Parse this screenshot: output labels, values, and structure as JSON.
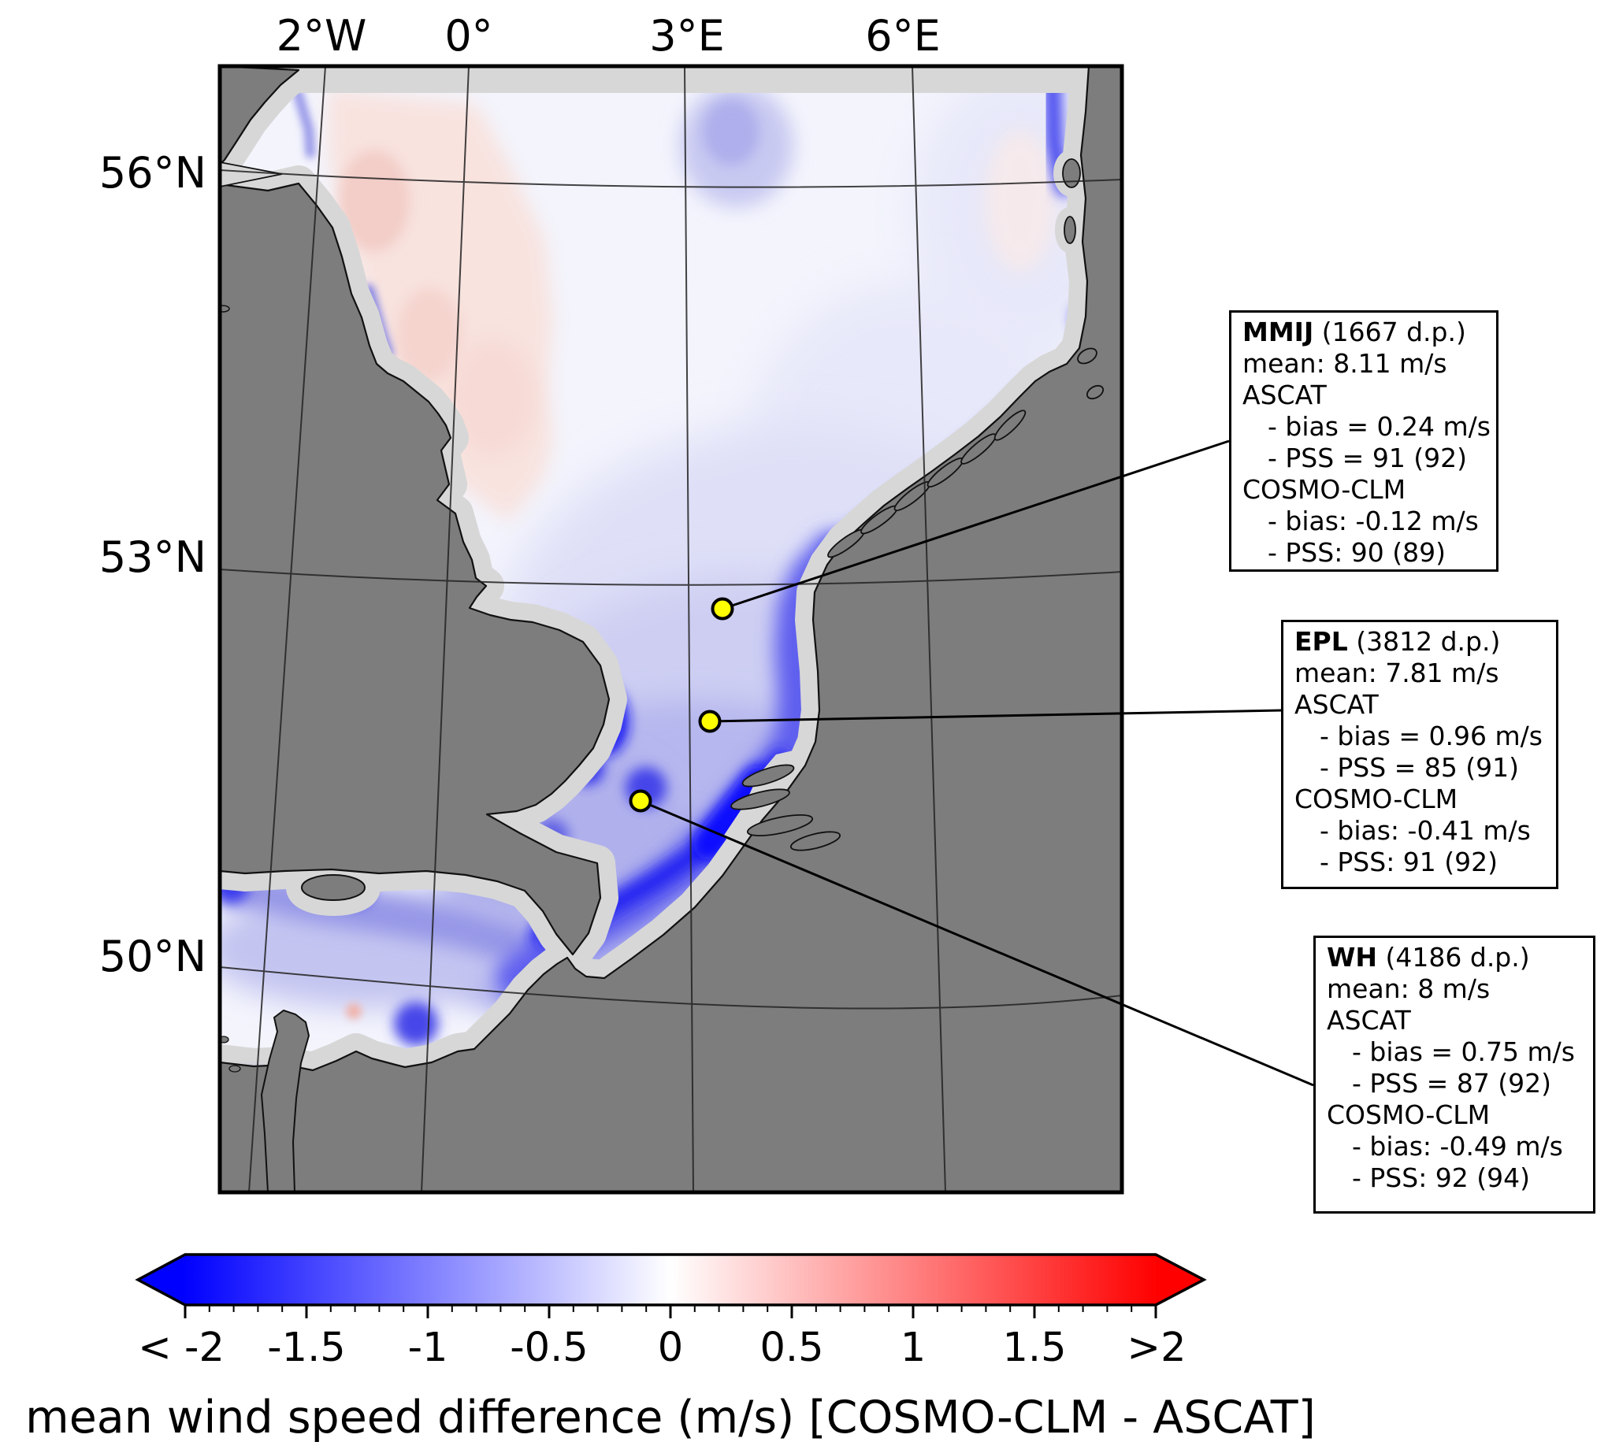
{
  "map": {
    "top_axis_ticks": [
      "2°W",
      "0°",
      "3°E",
      "6°E"
    ],
    "left_axis_ticks": [
      "56°N",
      "53°N",
      "50°N"
    ]
  },
  "stations": [
    {
      "name": "MMIJ",
      "header_rest": " (1667 d.p.)",
      "lines": [
        "mean: 8.11 m/s",
        "ASCAT",
        "- bias = 0.24 m/s",
        "- PSS = 91 (92)",
        "COSMO-CLM",
        "- bias: -0.12 m/s",
        "- PSS: 90 (89)"
      ]
    },
    {
      "name": "EPL",
      "header_rest": " (3812 d.p.)",
      "lines": [
        "mean: 7.81 m/s",
        "ASCAT",
        "- bias = 0.96 m/s",
        "- PSS = 85 (91)",
        "COSMO-CLM",
        "- bias: -0.41 m/s",
        "- PSS: 91 (92)"
      ]
    },
    {
      "name": "WH",
      "header_rest": " (4186 d.p.)",
      "lines": [
        "mean: 8 m/s",
        "ASCAT",
        "- bias = 0.75 m/s",
        "- PSS = 87 (92)",
        "COSMO-CLM",
        "- bias: -0.49 m/s",
        "- PSS: 92 (94)"
      ]
    }
  ],
  "colorbar": {
    "ticks": [
      "< -2",
      "-1.5",
      "-1",
      "-0.5",
      "0",
      "0.5",
      "1",
      "1.5",
      ">2"
    ],
    "title": "mean wind speed difference (m/s) [COSMO-CLM - ASCAT]",
    "min_color": "#0000ff",
    "mid_color": "#ffffff",
    "max_color": "#ff0000"
  },
  "colors": {
    "land": "#7d7d7d",
    "no_data_buffer": "#d7d7d7",
    "station_marker": "#ffff00"
  },
  "chart_data": {
    "type": "heatmap",
    "title": "mean wind speed difference (m/s) [COSMO-CLM - ASCAT]",
    "colormap": "blue-white-red",
    "colorbar_range": [
      -2,
      2
    ],
    "colorbar_tick_values": [
      -2,
      -1.5,
      -1,
      -0.5,
      0,
      0.5,
      1,
      1.5,
      2
    ],
    "colorbar_extended_both_ends": true,
    "lon_ticks": [
      "2°W",
      "0°",
      "3°E",
      "6°E"
    ],
    "lat_ticks": [
      "56°N",
      "53°N",
      "50°N"
    ],
    "stations": [
      {
        "id": "MMIJ",
        "data_points": 1667,
        "mean_ms": 8.11,
        "ascat_bias_ms": 0.24,
        "ascat_pss": "91 (92)",
        "cosmo_clm_bias_ms": -0.12,
        "cosmo_clm_pss": "90 (89)"
      },
      {
        "id": "EPL",
        "data_points": 3812,
        "mean_ms": 7.81,
        "ascat_bias_ms": 0.96,
        "ascat_pss": "85 (91)",
        "cosmo_clm_bias_ms": -0.41,
        "cosmo_clm_pss": "91 (92)"
      },
      {
        "id": "WH",
        "data_points": 4186,
        "mean_ms": 8,
        "ascat_bias_ms": 0.75,
        "ascat_pss": "87 (92)",
        "cosmo_clm_bias_ms": -0.49,
        "cosmo_clm_pss": "92 (94)"
      }
    ]
  }
}
